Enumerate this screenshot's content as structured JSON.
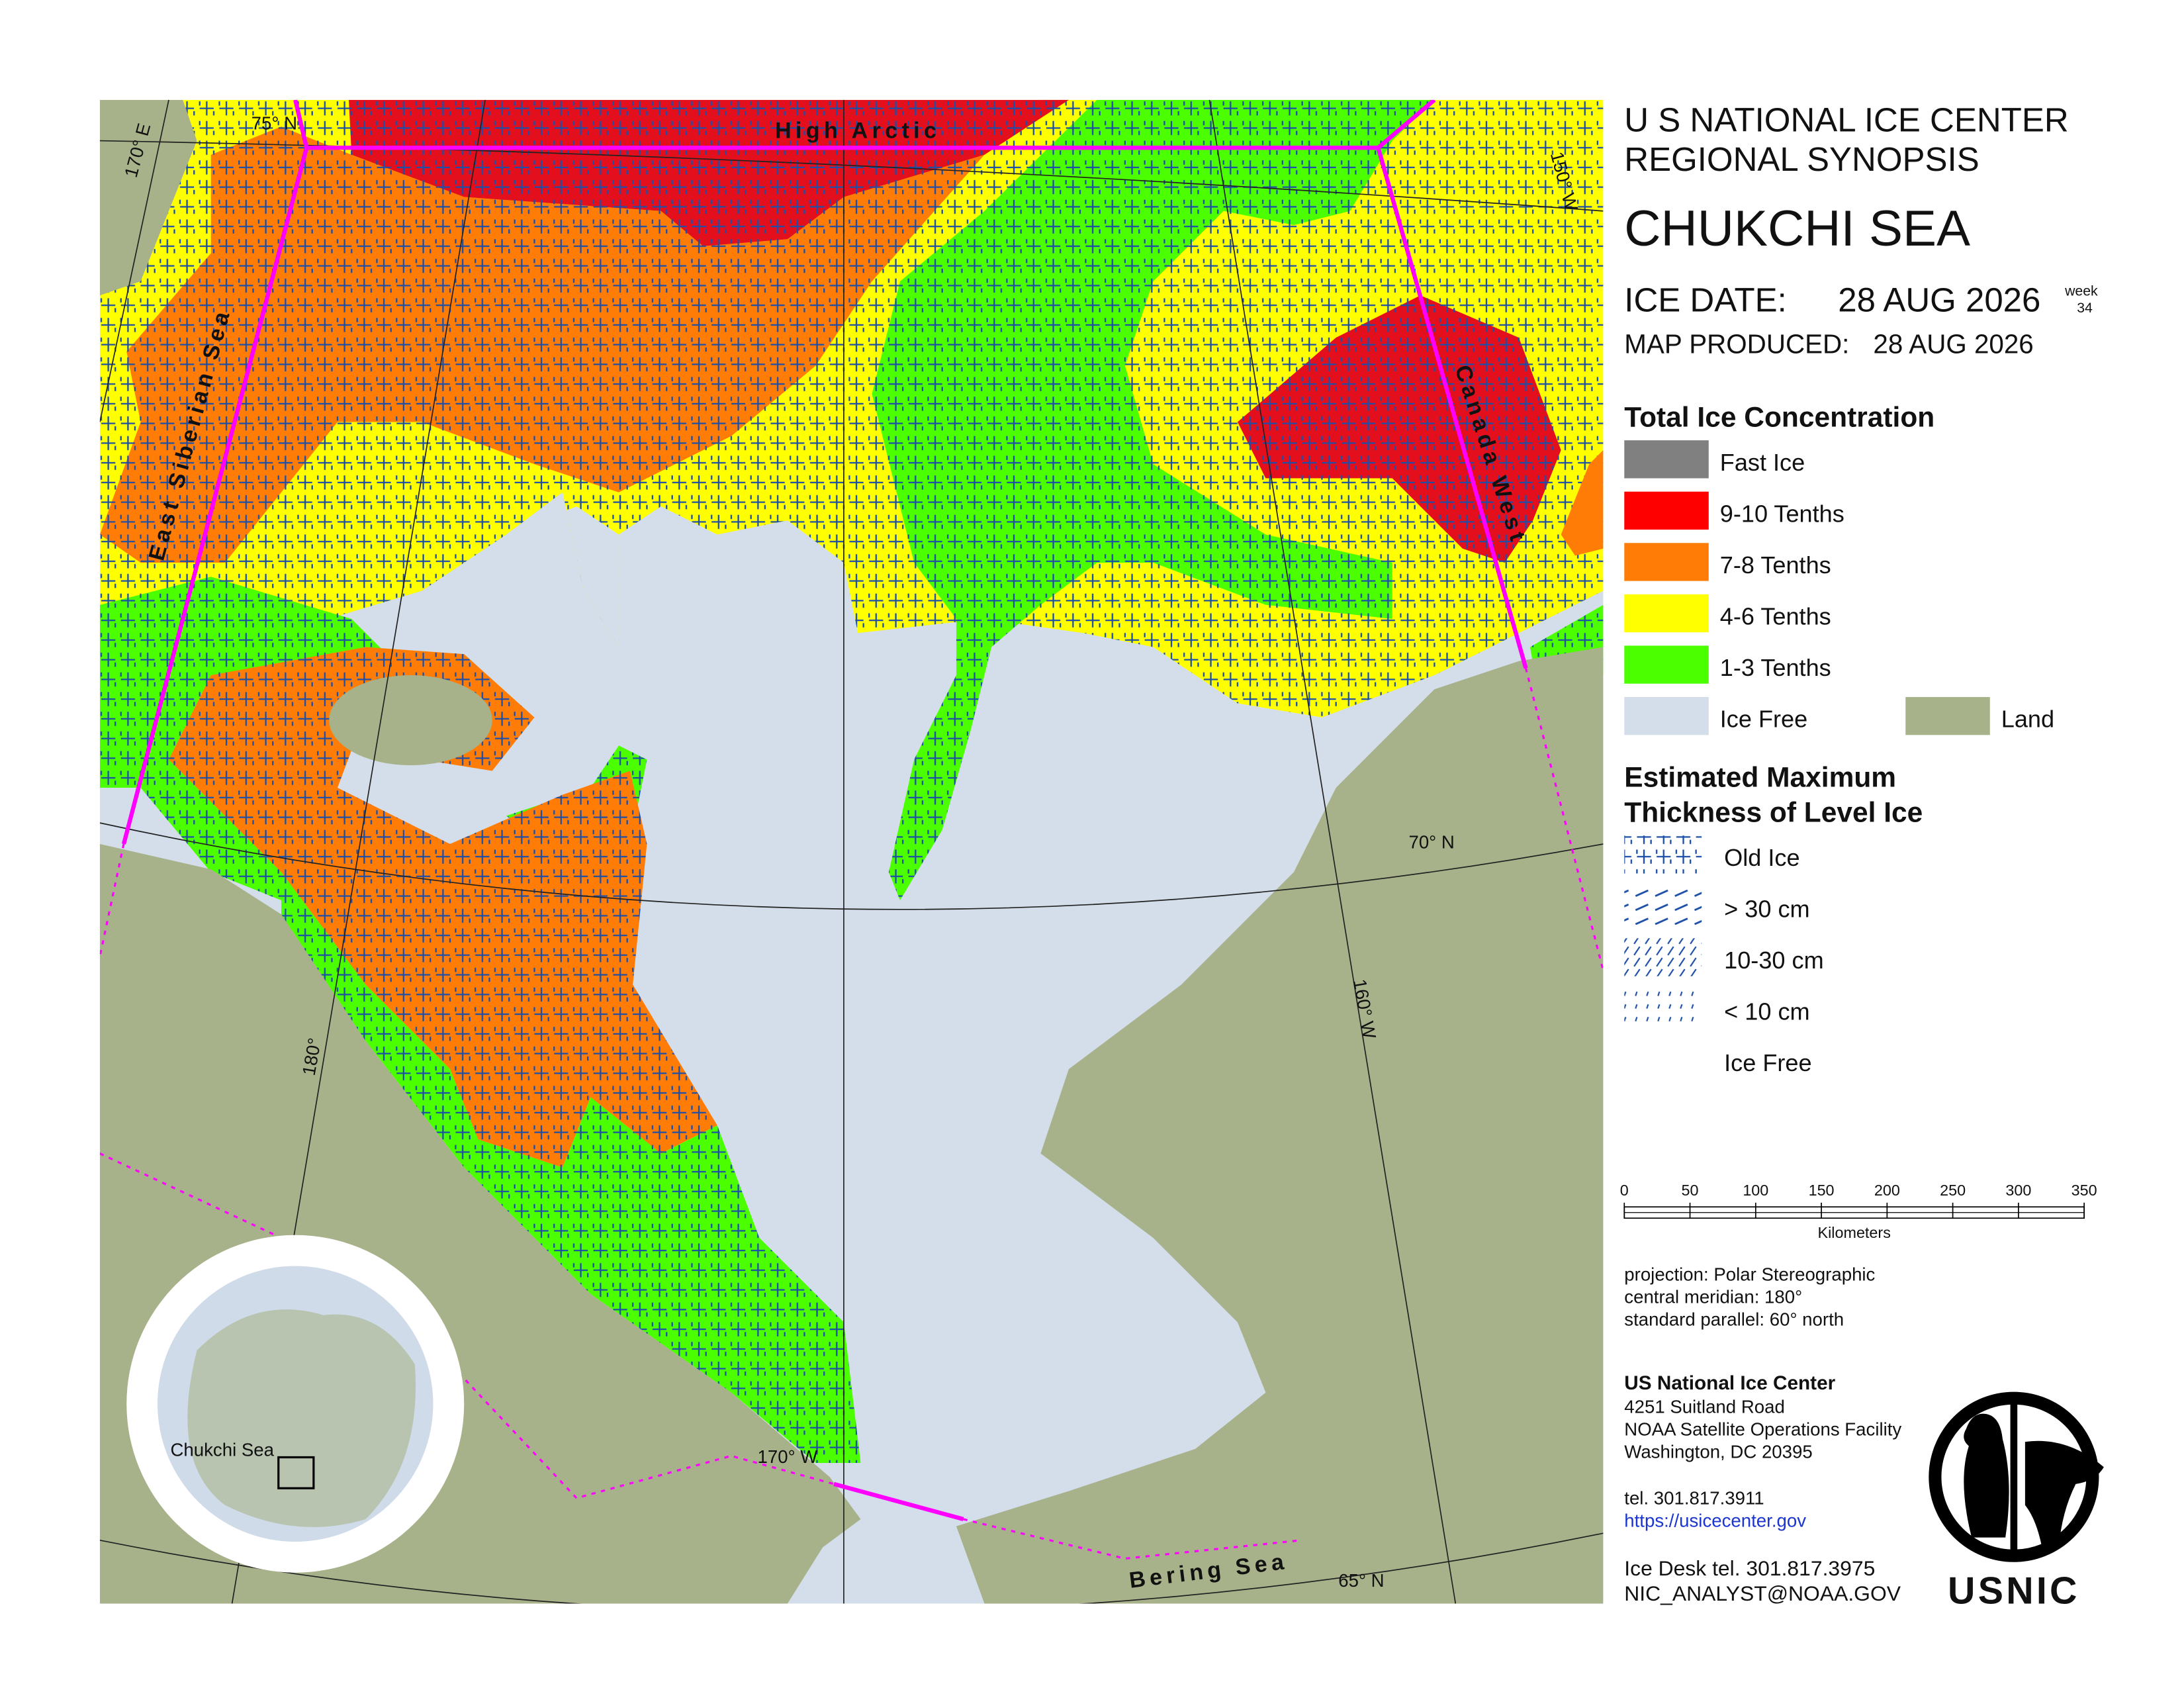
{
  "header": {
    "agency": "U S NATIONAL ICE CENTER",
    "synopsis": "REGIONAL SYNOPSIS",
    "region": "CHUKCHI SEA",
    "ice_date_label": "ICE DATE:",
    "ice_date": "28 AUG 2026",
    "week_label": "week",
    "week": 34,
    "map_produced_label": "MAP PRODUCED:",
    "map_produced": "28 AUG 2026"
  },
  "legend_concentration": {
    "title": "Total Ice Concentration",
    "items": [
      {
        "label": "Fast Ice",
        "color": "#808080"
      },
      {
        "label": "9-10 Tenths",
        "color": "#ff0000"
      },
      {
        "label": "7-8 Tenths",
        "color": "#ff7d07"
      },
      {
        "label": "4-6 Tenths",
        "color": "#ffff00"
      },
      {
        "label": "1-3 Tenths",
        "color": "#4cff00"
      },
      {
        "label": "Ice Free",
        "color": "#d3deea"
      },
      {
        "label": "Land",
        "color": "#a8b28a"
      }
    ]
  },
  "legend_thickness": {
    "title_lines": [
      "Estimated Maximum",
      "Thickness of Level Ice"
    ],
    "items": [
      {
        "label": "Old Ice"
      },
      {
        "label": "> 30 cm"
      },
      {
        "label": "10-30 cm"
      },
      {
        "label": "< 10 cm"
      },
      {
        "label": "Ice Free"
      }
    ]
  },
  "scale_bar": {
    "ticks": [
      0,
      50,
      100,
      150,
      200,
      250,
      300,
      350
    ],
    "unit": "Kilometers"
  },
  "projection": [
    "projection: Polar Stereographic",
    "central meridian: 180°",
    "standard parallel:  60° north"
  ],
  "contact": {
    "name": "US National Ice Center",
    "lines": [
      "4251 Suitland Road",
      "NOAA Satellite Operations Facility",
      "Washington, DC  20395"
    ],
    "tel": "tel. 301.817.3911",
    "url": "https://usicecenter.gov",
    "ice_desk": "Ice Desk tel. 301.817.3975",
    "email": "NIC_ANALYST@NOAA.GOV"
  },
  "logo": "USNIC",
  "map": {
    "regions": [
      "High Arctic",
      "East Siberian Sea",
      "Canada West",
      "Bering Sea"
    ],
    "inset_label": "Chukchi Sea",
    "graticule": [
      "75° N",
      "170° E",
      "150° W",
      "70° N",
      "180°",
      "160° W",
      "170° W",
      "65° N"
    ]
  }
}
